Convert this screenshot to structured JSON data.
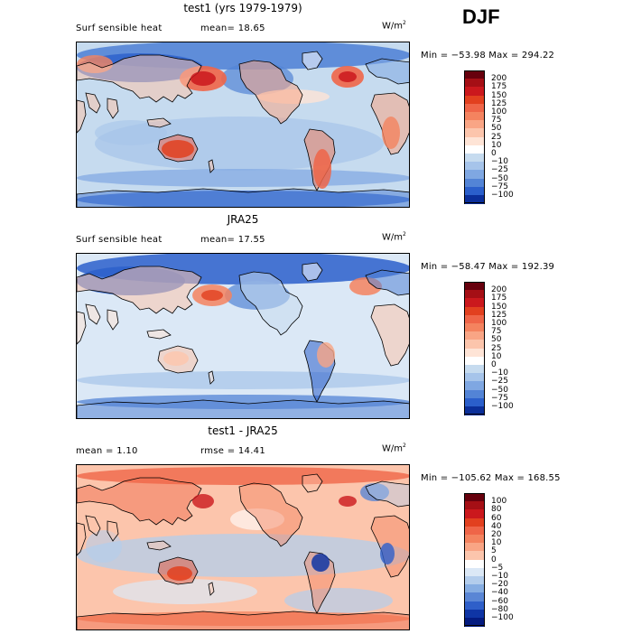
{
  "season": "DJF",
  "panels": [
    {
      "title": "test1 (yrs 1979-1979)",
      "variable": "Surf sensible heat",
      "mean_text": "mean=   18.65",
      "units": "W/m",
      "units_exp": "2",
      "minmax": "Min = −53.98  Max = 294.22",
      "colorbar": {
        "labels": [
          "200",
          "175",
          "150",
          "125",
          "100",
          "75",
          "50",
          "25",
          "10",
          "0",
          "−10",
          "−25",
          "−50",
          "−75",
          "−100"
        ],
        "colors": [
          "#67000d",
          "#a50f15",
          "#cb181d",
          "#e2401f",
          "#ef6548",
          "#f4835f",
          "#f9a585",
          "#fcc5ac",
          "#fee4d6",
          "#ffffff",
          "#c6dbef",
          "#a6c4ea",
          "#7fa7e2",
          "#5384d6",
          "#2b5fcb",
          "#0b2f9a"
        ]
      }
    },
    {
      "title": "JRA25",
      "variable": "Surf sensible heat",
      "mean_text": "mean=   17.55",
      "units": "W/m",
      "units_exp": "2",
      "minmax": "Min = −58.47  Max = 192.39",
      "colorbar": {
        "labels": [
          "200",
          "175",
          "150",
          "125",
          "100",
          "75",
          "50",
          "25",
          "10",
          "0",
          "−10",
          "−25",
          "−50",
          "−75",
          "−100"
        ],
        "colors": [
          "#67000d",
          "#a50f15",
          "#cb181d",
          "#e2401f",
          "#ef6548",
          "#f4835f",
          "#f9a585",
          "#fcc5ac",
          "#fee4d6",
          "#ffffff",
          "#c6dbef",
          "#a6c4ea",
          "#7fa7e2",
          "#5384d6",
          "#2b5fcb",
          "#0b2f9a"
        ]
      }
    },
    {
      "title": "test1 - JRA25",
      "variable": "mean =    1.10",
      "mean_text": "rmse =   14.41",
      "units": "W/m",
      "units_exp": "2",
      "minmax": "Min = −105.62  Max = 168.55",
      "colorbar": {
        "labels": [
          "100",
          "80",
          "60",
          "40",
          "20",
          "10",
          "5",
          "0",
          "−5",
          "−10",
          "−20",
          "−40",
          "−60",
          "−80",
          "−100"
        ],
        "colors": [
          "#67000d",
          "#a50f15",
          "#cb181d",
          "#e2401f",
          "#ef6548",
          "#f4835f",
          "#f9a585",
          "#fcc5ac",
          "#ffffff",
          "#dbe8f6",
          "#b3cdec",
          "#86ade2",
          "#5a86d5",
          "#2f5fc9",
          "#0f35a5",
          "#041b80"
        ]
      }
    }
  ],
  "chart_data": [
    {
      "type": "heatmap",
      "title": "test1 (yrs 1979-1979)",
      "season": "DJF",
      "variable": "Surf sensible heat",
      "units": "W/m2",
      "mean": 18.65,
      "min": -53.98,
      "max": 294.22,
      "contour_levels": [
        -100,
        -75,
        -50,
        -25,
        -10,
        0,
        10,
        25,
        50,
        75,
        100,
        125,
        150,
        175,
        200
      ]
    },
    {
      "type": "heatmap",
      "title": "JRA25",
      "season": "DJF",
      "variable": "Surf sensible heat",
      "units": "W/m2",
      "mean": 17.55,
      "min": -58.47,
      "max": 192.39,
      "contour_levels": [
        -100,
        -75,
        -50,
        -25,
        -10,
        0,
        10,
        25,
        50,
        75,
        100,
        125,
        150,
        175,
        200
      ]
    },
    {
      "type": "heatmap",
      "title": "test1 - JRA25",
      "season": "DJF",
      "units": "W/m2",
      "mean": 1.1,
      "rmse": 14.41,
      "min": -105.62,
      "max": 168.55,
      "contour_levels": [
        -100,
        -80,
        -60,
        -40,
        -20,
        -10,
        -5,
        0,
        5,
        10,
        20,
        40,
        60,
        80,
        100
      ]
    }
  ]
}
